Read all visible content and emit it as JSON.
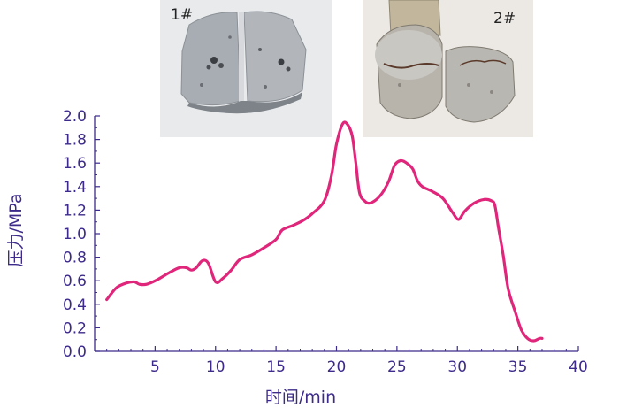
{
  "chart_data": {
    "type": "line",
    "title": "",
    "xlabel": "时间/min",
    "ylabel": "压力/MPa",
    "xlim": [
      0,
      40
    ],
    "ylim": [
      0,
      2.0
    ],
    "x_ticks": [
      5,
      10,
      15,
      20,
      25,
      30,
      35,
      40
    ],
    "y_ticks": [
      0.0,
      0.2,
      0.4,
      0.6,
      0.8,
      1.0,
      1.2,
      1.4,
      1.6,
      1.8,
      2.0
    ],
    "x_tick_labels": [
      "5",
      "10",
      "15",
      "20",
      "25",
      "30",
      "35",
      "40"
    ],
    "y_tick_labels": [
      "0.0",
      "0.2",
      "0.4",
      "0.6",
      "0.8",
      "1.0",
      "1.2",
      "1.4",
      "1.6",
      "1.8",
      "2.0"
    ],
    "grid": false,
    "series": [
      {
        "color": "#e0267b",
        "x": [
          1,
          1.8,
          2.6,
          3.3,
          3.7,
          4.3,
          5.2,
          6.2,
          7.0,
          7.6,
          8.0,
          8.4,
          8.9,
          9.4,
          10.0,
          10.6,
          11.3,
          12.0,
          13.0,
          14.0,
          15.0,
          15.5,
          16.4,
          17.2,
          18.0,
          19.0,
          19.6,
          20.0,
          20.5,
          20.9,
          21.3,
          21.6,
          21.9,
          22.3,
          22.8,
          23.6,
          24.3,
          24.8,
          25.3,
          25.8,
          26.3,
          26.7,
          27.1,
          27.9,
          28.8,
          29.6,
          30.1,
          30.6,
          31.4,
          32.2,
          32.8,
          33.1,
          33.4,
          33.8,
          34.2,
          34.8,
          35.3,
          35.8,
          36.3,
          36.8,
          37.0
        ],
        "y": [
          0.44,
          0.54,
          0.58,
          0.59,
          0.57,
          0.57,
          0.61,
          0.67,
          0.71,
          0.71,
          0.69,
          0.71,
          0.77,
          0.75,
          0.59,
          0.62,
          0.69,
          0.78,
          0.82,
          0.88,
          0.95,
          1.03,
          1.07,
          1.11,
          1.17,
          1.28,
          1.5,
          1.76,
          1.93,
          1.93,
          1.83,
          1.6,
          1.35,
          1.28,
          1.26,
          1.32,
          1.44,
          1.58,
          1.62,
          1.6,
          1.55,
          1.45,
          1.4,
          1.36,
          1.3,
          1.18,
          1.12,
          1.19,
          1.26,
          1.29,
          1.28,
          1.24,
          1.05,
          0.81,
          0.53,
          0.33,
          0.18,
          0.11,
          0.09,
          0.11,
          0.11
        ]
      }
    ],
    "axis_color": "#3d2a8a",
    "line_color": "#e0267b"
  },
  "photos": [
    {
      "icon": "rock-core-1-photo",
      "label": "1#"
    },
    {
      "icon": "rock-core-2-photo",
      "label": "2#"
    }
  ]
}
